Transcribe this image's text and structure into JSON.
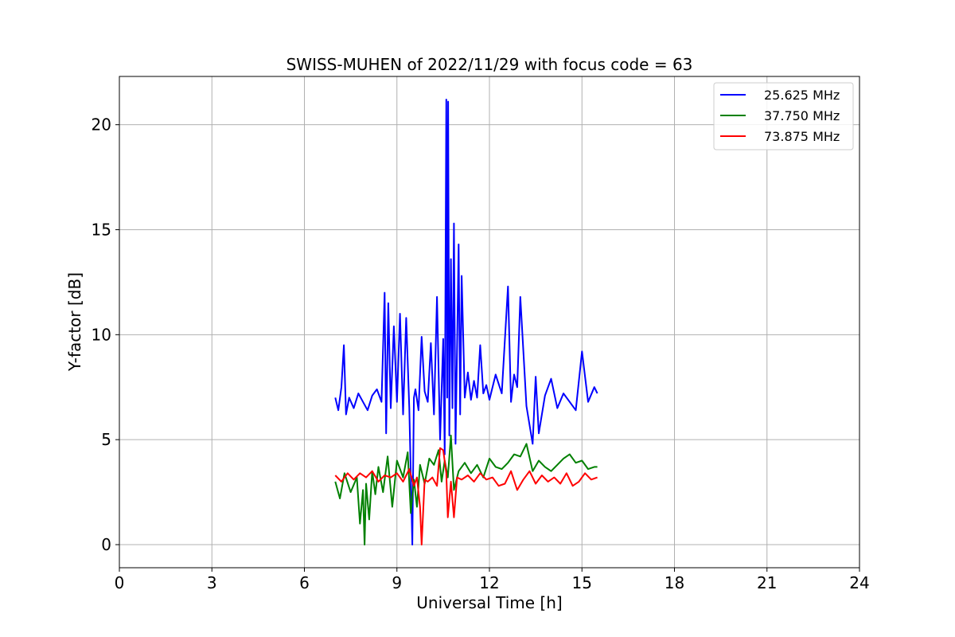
{
  "chart_data": {
    "type": "line",
    "title": "SWISS-MUHEN of 2022/11/29 with focus code = 63",
    "xlabel": "Universal Time [h]",
    "ylabel": "Y-factor [dB]",
    "xlim": [
      0,
      24
    ],
    "ylim": [
      -1.1,
      22.3
    ],
    "xticks": [
      0,
      3,
      6,
      9,
      12,
      15,
      18,
      21,
      24
    ],
    "yticks": [
      0,
      5,
      10,
      15,
      20
    ],
    "grid": true,
    "legend": "top-right",
    "series": [
      {
        "name": "25.625 MHz",
        "color": "#0000ff",
        "x": [
          7.0,
          7.1,
          7.2,
          7.28,
          7.35,
          7.45,
          7.6,
          7.75,
          7.9,
          8.05,
          8.2,
          8.35,
          8.5,
          8.6,
          8.65,
          8.72,
          8.8,
          8.9,
          9.0,
          9.1,
          9.2,
          9.3,
          9.4,
          9.5,
          9.55,
          9.6,
          9.7,
          9.8,
          9.9,
          10.0,
          10.1,
          10.2,
          10.3,
          10.4,
          10.5,
          10.55,
          10.6,
          10.63,
          10.66,
          10.7,
          10.75,
          10.8,
          10.85,
          10.9,
          10.95,
          11.0,
          11.05,
          11.1,
          11.2,
          11.3,
          11.4,
          11.5,
          11.6,
          11.7,
          11.8,
          11.9,
          12.0,
          12.2,
          12.4,
          12.6,
          12.7,
          12.8,
          12.9,
          13.0,
          13.2,
          13.4,
          13.5,
          13.6,
          13.8,
          14.0,
          14.2,
          14.4,
          14.6,
          14.8,
          15.0,
          15.2,
          15.4,
          15.5
        ],
        "y": [
          7.0,
          6.4,
          7.5,
          9.5,
          6.2,
          7.0,
          6.5,
          7.2,
          6.8,
          6.4,
          7.1,
          7.4,
          6.8,
          12.0,
          5.3,
          11.5,
          6.5,
          10.4,
          6.8,
          11.0,
          6.2,
          10.8,
          6.5,
          0.0,
          7.0,
          7.4,
          6.4,
          9.9,
          7.3,
          6.8,
          9.6,
          6.2,
          11.8,
          5.0,
          9.8,
          4.3,
          21.2,
          7.0,
          21.1,
          5.2,
          13.6,
          6.5,
          15.3,
          4.8,
          9.3,
          14.3,
          6.2,
          12.8,
          7.0,
          8.2,
          6.9,
          7.8,
          7.0,
          9.5,
          7.2,
          7.6,
          6.9,
          8.1,
          7.2,
          12.3,
          6.8,
          8.1,
          7.5,
          11.8,
          6.6,
          4.8,
          8.0,
          5.3,
          7.1,
          7.9,
          6.5,
          7.2,
          6.8,
          6.4,
          9.2,
          6.8,
          7.5,
          7.2
        ]
      },
      {
        "name": "37.750 MHz",
        "color": "#008000",
        "x": [
          7.0,
          7.15,
          7.3,
          7.5,
          7.7,
          7.8,
          7.9,
          7.95,
          8.0,
          8.1,
          8.2,
          8.3,
          8.4,
          8.55,
          8.7,
          8.85,
          9.0,
          9.2,
          9.35,
          9.45,
          9.55,
          9.65,
          9.75,
          9.9,
          10.05,
          10.2,
          10.35,
          10.45,
          10.55,
          10.65,
          10.75,
          10.85,
          11.0,
          11.2,
          11.4,
          11.6,
          11.8,
          12.0,
          12.2,
          12.4,
          12.6,
          12.8,
          13.0,
          13.2,
          13.4,
          13.6,
          13.8,
          14.0,
          14.2,
          14.4,
          14.6,
          14.8,
          15.0,
          15.2,
          15.4,
          15.5
        ],
        "y": [
          3.0,
          2.2,
          3.4,
          2.5,
          3.2,
          1.0,
          2.6,
          0.0,
          2.9,
          1.2,
          3.5,
          2.4,
          3.7,
          2.5,
          4.2,
          1.8,
          4.0,
          3.2,
          4.4,
          1.5,
          3.1,
          1.8,
          3.8,
          2.9,
          4.1,
          3.8,
          4.5,
          3.0,
          4.0,
          3.2,
          5.2,
          2.6,
          3.5,
          3.9,
          3.4,
          3.8,
          3.2,
          4.1,
          3.7,
          3.6,
          3.9,
          4.3,
          4.2,
          4.8,
          3.5,
          4.0,
          3.7,
          3.5,
          3.8,
          4.1,
          4.3,
          3.9,
          4.0,
          3.6,
          3.7,
          3.7
        ]
      },
      {
        "name": "73.875 MHz",
        "color": "#ff0000",
        "x": [
          7.0,
          7.2,
          7.4,
          7.6,
          7.8,
          8.0,
          8.2,
          8.4,
          8.6,
          8.8,
          9.0,
          9.2,
          9.4,
          9.55,
          9.65,
          9.75,
          9.8,
          9.9,
          10.0,
          10.15,
          10.3,
          10.4,
          10.5,
          10.6,
          10.65,
          10.75,
          10.85,
          10.95,
          11.1,
          11.3,
          11.5,
          11.7,
          11.9,
          12.1,
          12.3,
          12.5,
          12.7,
          12.9,
          13.1,
          13.3,
          13.5,
          13.7,
          13.9,
          14.1,
          14.3,
          14.5,
          14.7,
          14.9,
          15.1,
          15.3,
          15.5
        ],
        "y": [
          3.3,
          3.0,
          3.4,
          3.1,
          3.4,
          3.2,
          3.5,
          3.0,
          3.3,
          3.2,
          3.4,
          3.0,
          3.6,
          2.8,
          3.2,
          1.8,
          0.0,
          3.1,
          3.0,
          3.2,
          2.8,
          4.6,
          4.5,
          3.4,
          1.3,
          3.0,
          1.3,
          3.2,
          3.1,
          3.3,
          3.0,
          3.4,
          3.1,
          3.2,
          2.8,
          2.9,
          3.5,
          2.6,
          3.1,
          3.5,
          2.9,
          3.3,
          3.0,
          3.2,
          2.9,
          3.4,
          2.8,
          3.0,
          3.4,
          3.1,
          3.2
        ]
      }
    ]
  }
}
